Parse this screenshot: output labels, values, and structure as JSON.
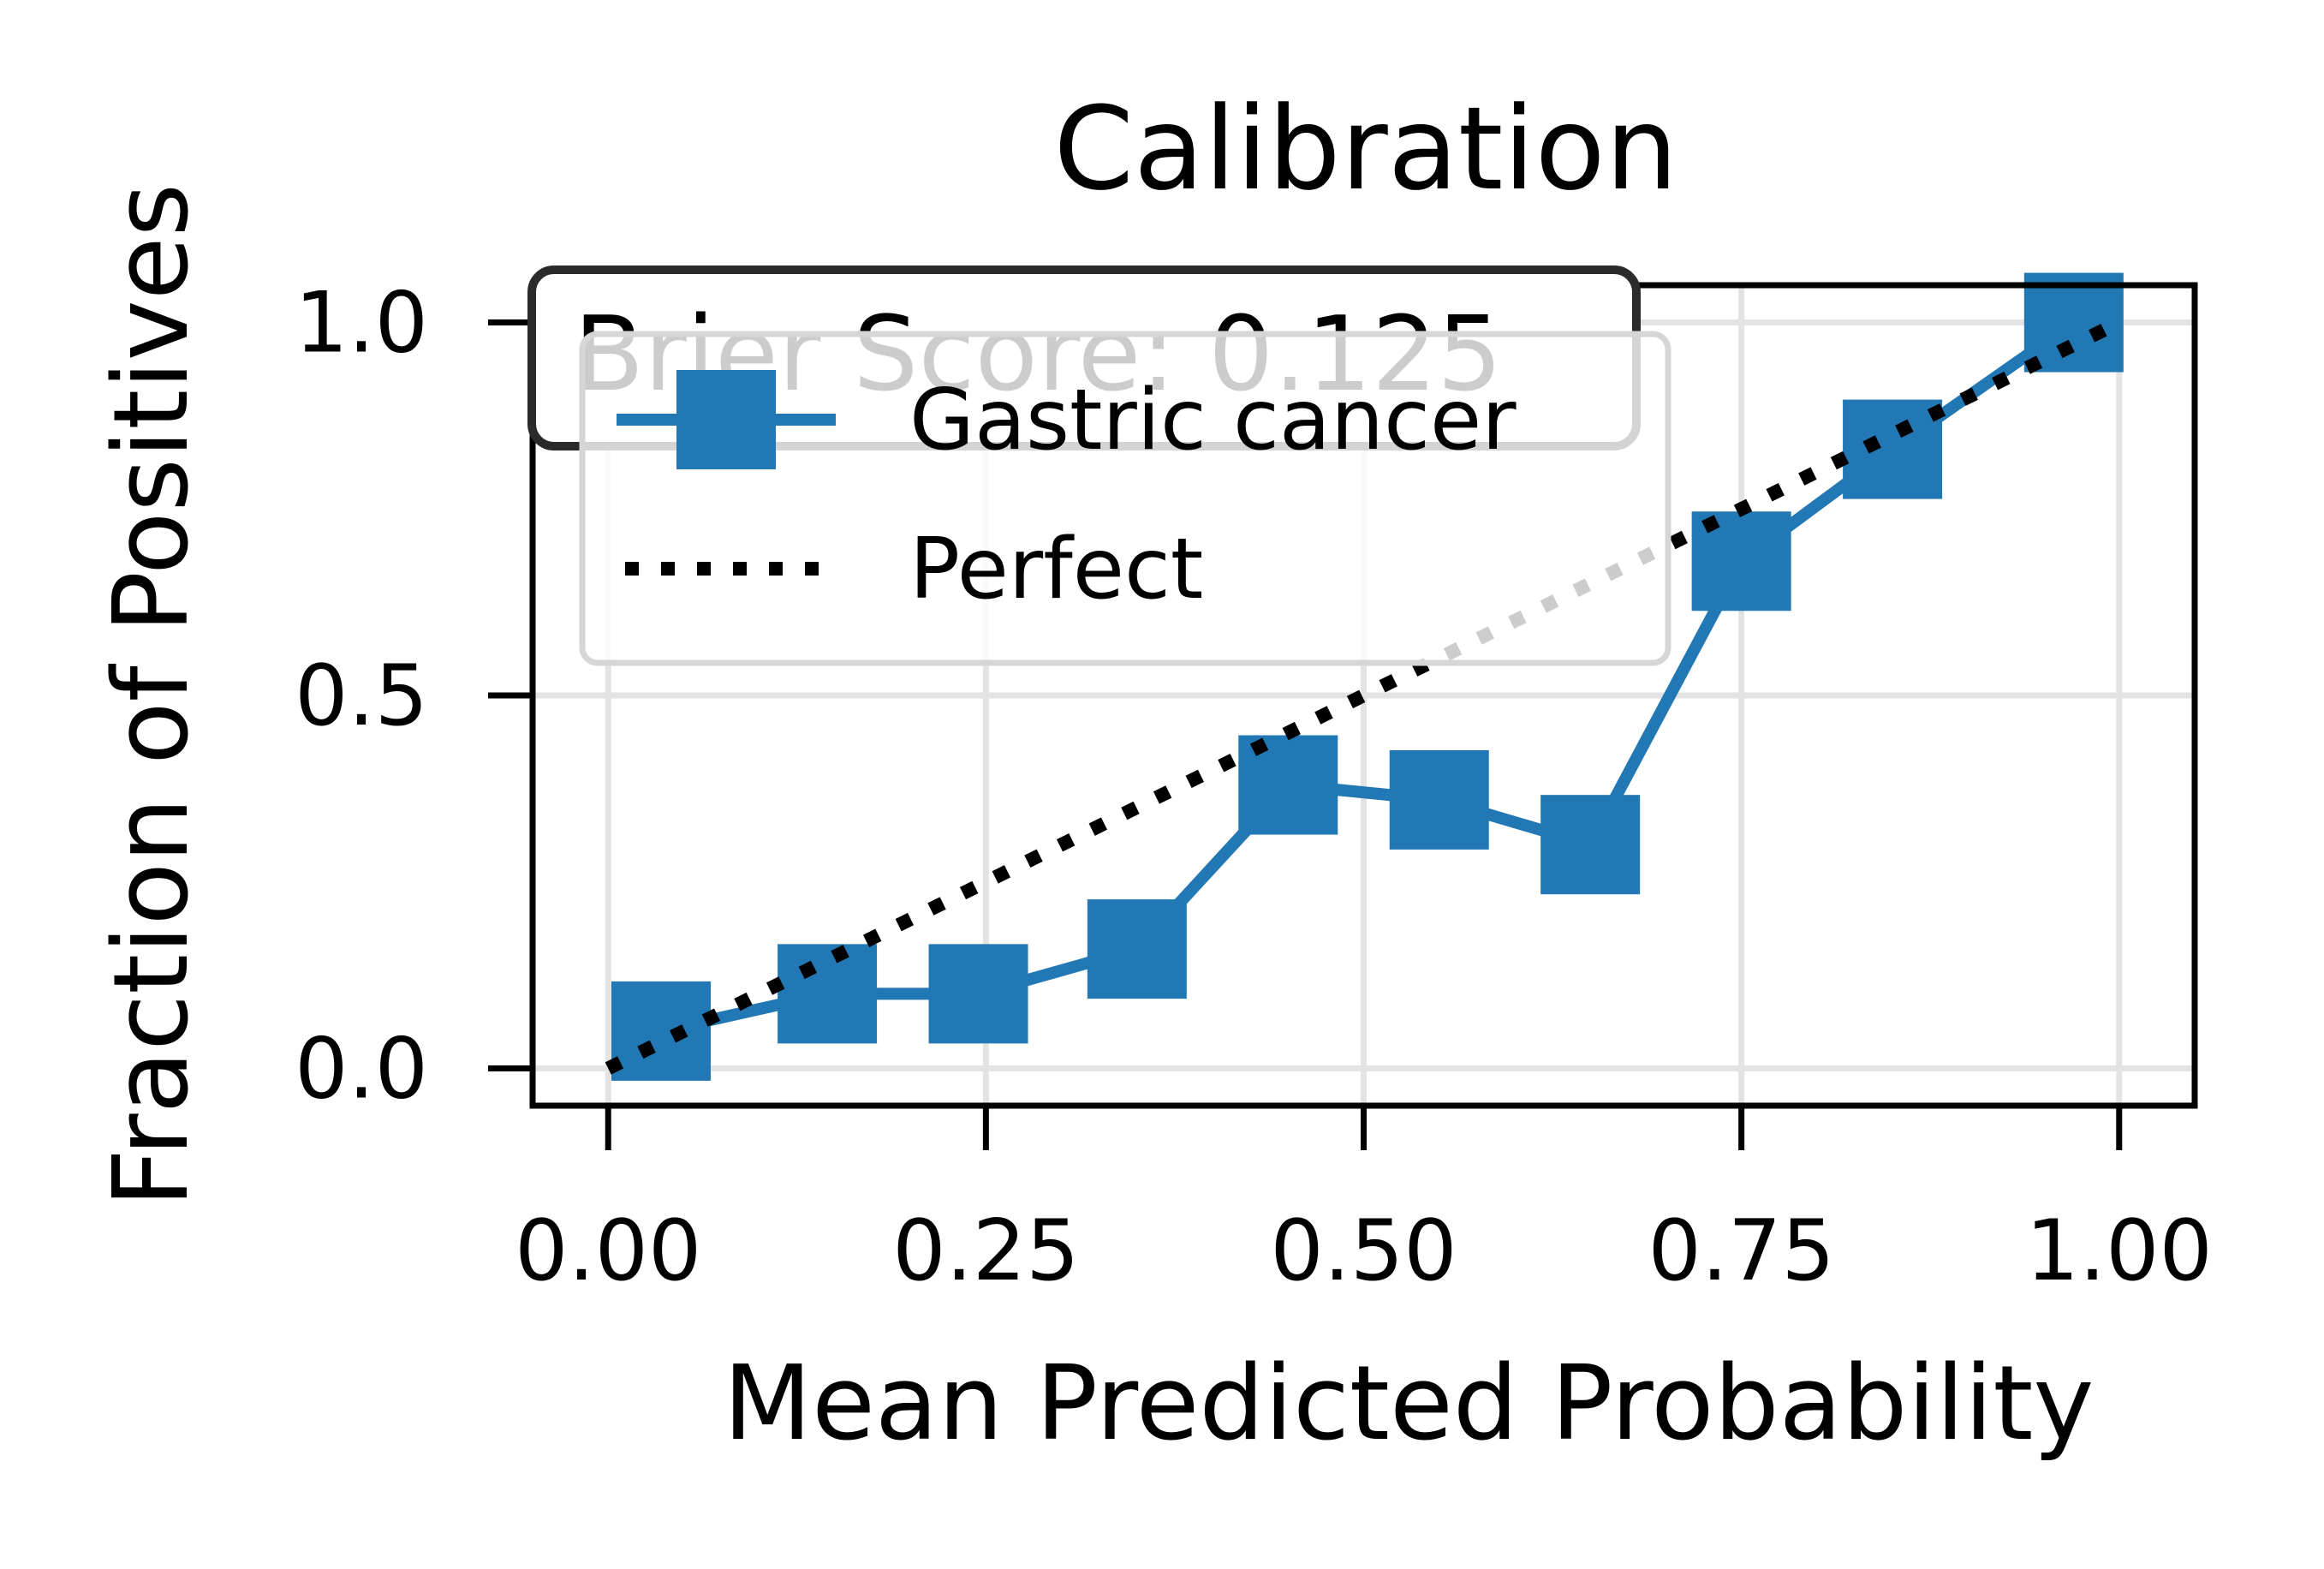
{
  "chart_data": {
    "type": "line",
    "title": "Calibration",
    "xlabel": "Mean Predicted Probability",
    "ylabel": "Fraction of Positives",
    "xlim": [
      -0.1,
      2.1
    ],
    "ylim": [
      -0.05,
      1.05
    ],
    "grid": true,
    "x_ticks": [
      {
        "value": 0.0,
        "label": "0.00"
      },
      {
        "value": 0.5,
        "label": "0.25"
      },
      {
        "value": 1.0,
        "label": "0.50"
      },
      {
        "value": 1.5,
        "label": "0.75"
      },
      {
        "value": 2.0,
        "label": "1.00"
      }
    ],
    "y_ticks": [
      {
        "value": 0.0,
        "label": "0.0"
      },
      {
        "value": 0.5,
        "label": "0.5"
      },
      {
        "value": 1.0,
        "label": "1.0"
      }
    ],
    "series": [
      {
        "name": "Gastric cancer",
        "style": "solid",
        "marker": "square",
        "color": "#2178b4",
        "x": [
          0.07,
          0.29,
          0.49,
          0.7,
          0.9,
          1.1,
          1.3,
          1.5,
          1.7,
          1.94
        ],
        "y": [
          0.05,
          0.1,
          0.1,
          0.16,
          0.38,
          0.36,
          0.3,
          0.68,
          0.83,
          1.0
        ]
      },
      {
        "name": "Perfect",
        "style": "dotted",
        "marker": "none",
        "color": "#000000",
        "x": [
          0.0,
          2.0
        ],
        "y": [
          0.0,
          1.0
        ]
      }
    ],
    "legend_position": "upper-left",
    "annotation": "Brier Score: 0.125"
  }
}
